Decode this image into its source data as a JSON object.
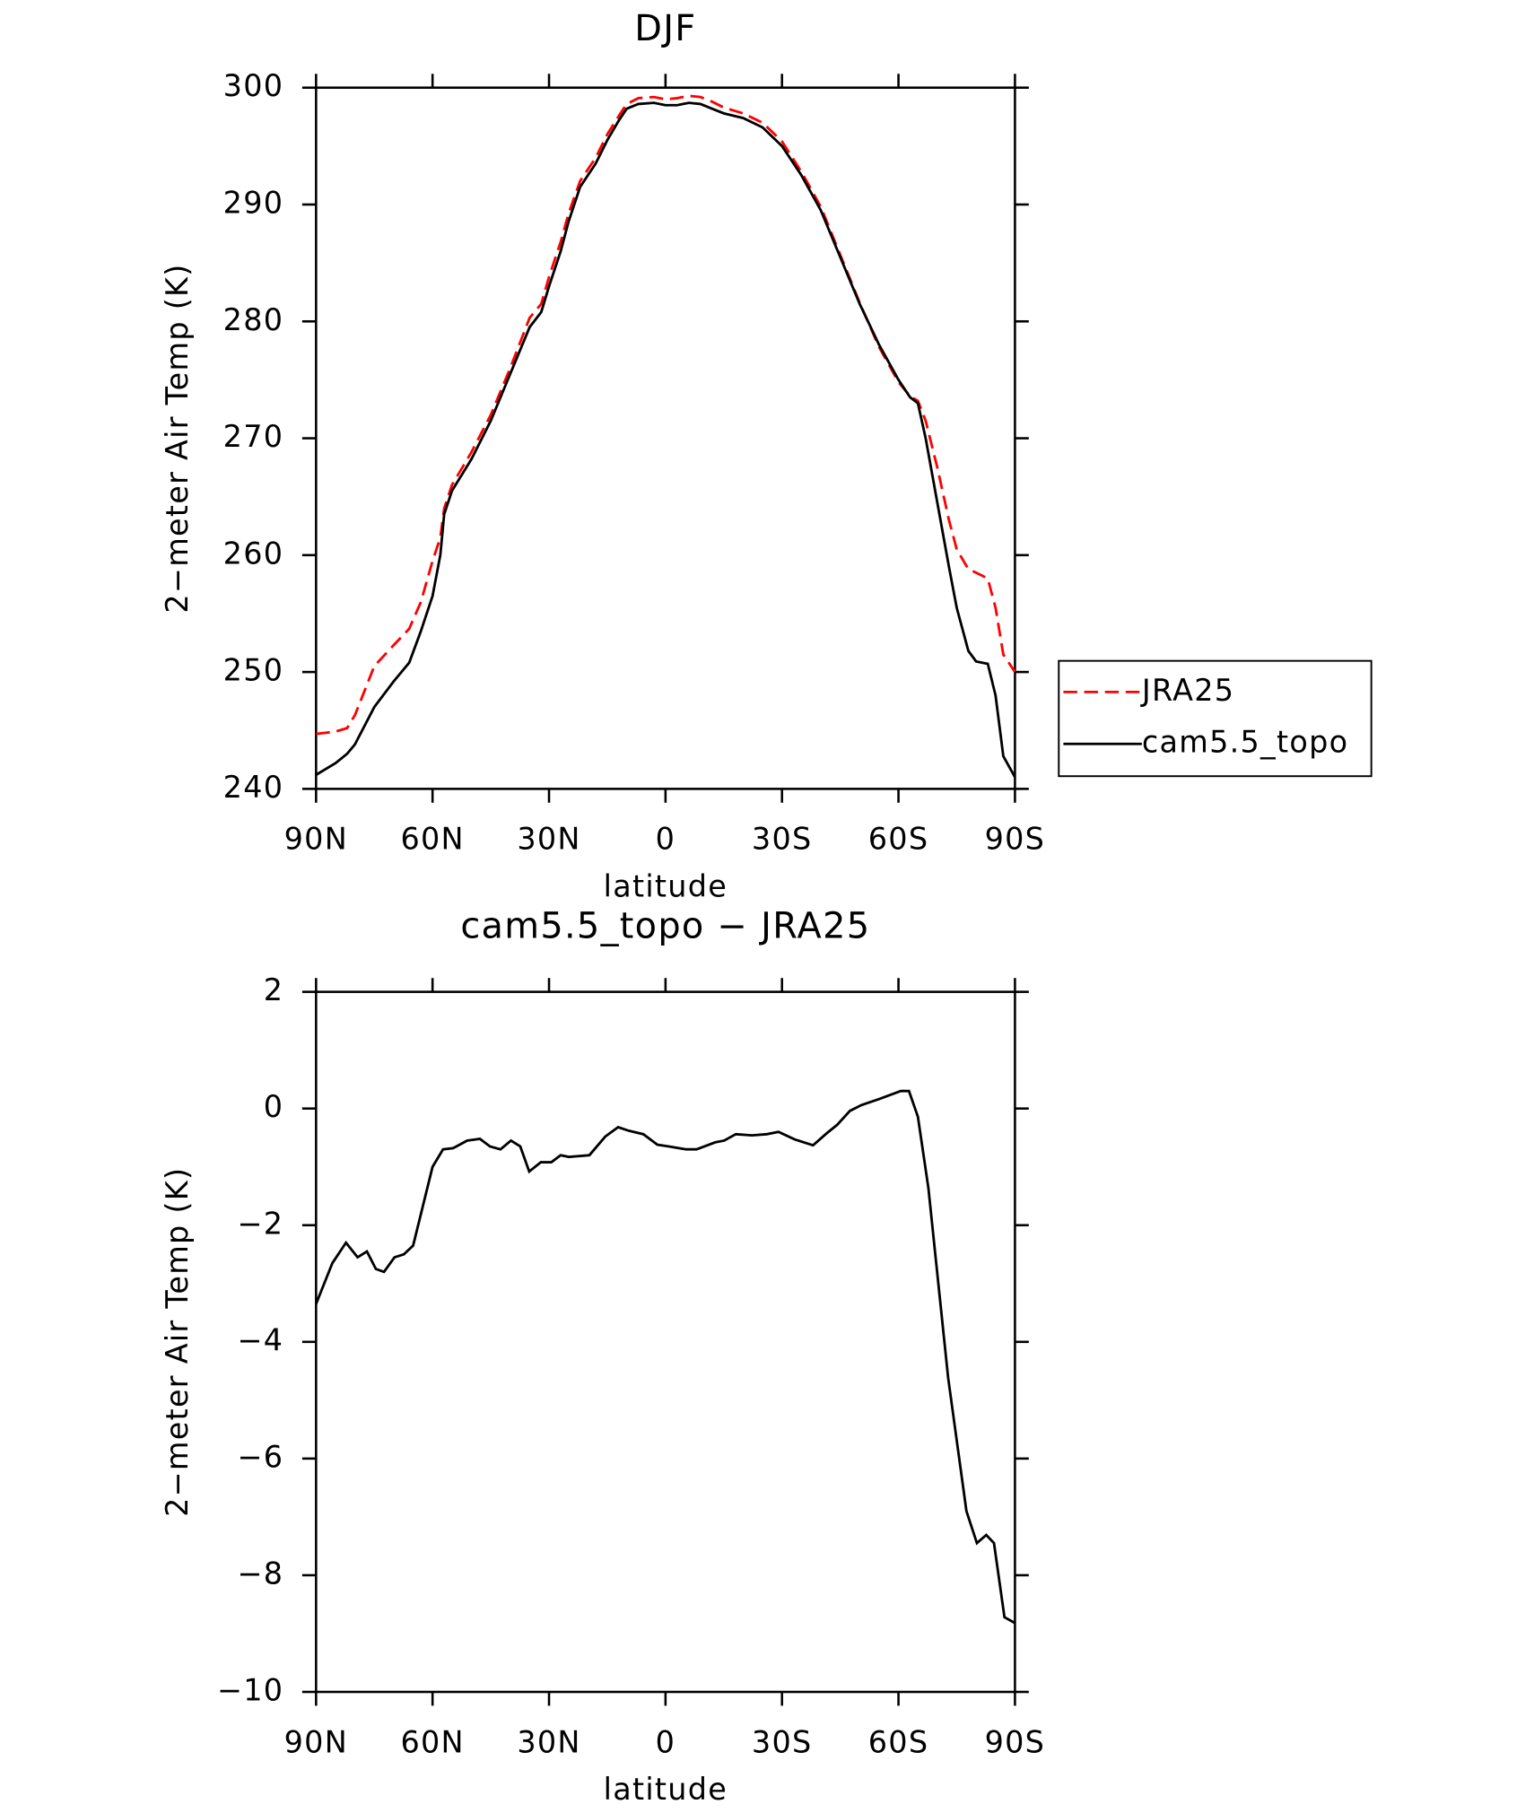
{
  "chart_data": [
    {
      "type": "line",
      "title": "DJF",
      "xlabel": "latitude",
      "ylabel": "2−meter Air Temp (K)",
      "x": [
        90,
        85,
        82,
        80,
        75,
        70,
        66,
        63,
        60,
        58,
        57,
        55,
        50,
        45,
        40,
        35,
        32,
        30,
        27,
        25,
        22,
        18,
        15,
        12,
        10,
        7,
        3,
        0,
        -3,
        -6,
        -9,
        -12,
        -15,
        -20,
        -25,
        -30,
        -35,
        -40,
        -45,
        -50,
        -55,
        -60,
        -63,
        -65,
        -67,
        -70,
        -73,
        -75,
        -78,
        -80,
        -83,
        -85,
        -87,
        -90
      ],
      "series": [
        {
          "name": "JRA25",
          "color": "#ff0000",
          "dash": true,
          "values": [
            244.7,
            244.9,
            245.2,
            246.3,
            250.5,
            252.3,
            253.7,
            256,
            259.5,
            261.5,
            264,
            266,
            268.8,
            272,
            276,
            280.3,
            281.5,
            283.8,
            286.8,
            289.2,
            292,
            294,
            296,
            297.6,
            298.6,
            299.1,
            299.2,
            299.0,
            299.1,
            299.3,
            299.2,
            298.8,
            298.3,
            297.8,
            297.0,
            295.4,
            292.8,
            289.8,
            285.7,
            281.6,
            277.8,
            274.8,
            273.6,
            273.2,
            271.5,
            267.5,
            263,
            260.5,
            258.8,
            258.5,
            258.0,
            255.5,
            251.5,
            250.0
          ]
        },
        {
          "name": "cam5.5_topo",
          "color": "#000000",
          "dash": false,
          "values": [
            241.2,
            242.2,
            243.0,
            243.8,
            247,
            249.2,
            250.8,
            253.5,
            256.5,
            260,
            263.5,
            265.5,
            268.2,
            271.5,
            275.5,
            279.5,
            280.8,
            283,
            286,
            288.5,
            291.5,
            293.5,
            295.5,
            297.2,
            298.2,
            298.6,
            298.7,
            298.5,
            298.5,
            298.7,
            298.6,
            298.2,
            297.8,
            297.4,
            296.6,
            295.0,
            292.5,
            289.5,
            285.5,
            281.5,
            278.0,
            275.0,
            273.5,
            273.0,
            270.0,
            264.5,
            259,
            255.5,
            251.8,
            250.9,
            250.7,
            248,
            242.8,
            241.0
          ]
        }
      ],
      "xlim": [
        90,
        -90
      ],
      "xticks": [
        {
          "value": 90,
          "label": "90N"
        },
        {
          "value": 60,
          "label": "60N"
        },
        {
          "value": 30,
          "label": "30N"
        },
        0,
        {
          "value": -30,
          "label": "30S"
        },
        {
          "value": -60,
          "label": "60S"
        },
        {
          "value": -90,
          "label": "90S"
        }
      ],
      "ylim": [
        240,
        300
      ],
      "yticks": [
        240,
        250,
        260,
        270,
        280,
        290,
        300
      ],
      "legend": "right"
    },
    {
      "type": "line",
      "title": "cam5.5_topo − JRA25",
      "xlabel": "latitude",
      "ylabel": "2−meter Air Temp (K)",
      "x": [
        90,
        85.8,
        82.3,
        79.3,
        76.9,
        74.6,
        72.5,
        69.8,
        67.4,
        65,
        60,
        57.3,
        54.7,
        51.1,
        47.8,
        45.2,
        42.5,
        39.8,
        37.4,
        35.1,
        32.1,
        29.4,
        27,
        24.9,
        19.6,
        15.5,
        12.2,
        9.5,
        5.7,
        2.1,
        -0.9,
        -5.3,
        -8,
        -12.8,
        -15.1,
        -18.1,
        -22.3,
        -26.1,
        -29.1,
        -33.3,
        -38,
        -41.6,
        -44.2,
        -47.5,
        -50.5,
        -54.9,
        -60.6,
        -62.7,
        -65,
        -67.7,
        -72.8,
        -77.5,
        -80.2,
        -82.6,
        -84.6,
        -87.3,
        -90
      ],
      "values": [
        -3.35,
        -2.65,
        -2.3,
        -2.55,
        -2.45,
        -2.75,
        -2.8,
        -2.55,
        -2.5,
        -2.35,
        -1.0,
        -0.7,
        -0.68,
        -0.55,
        -0.52,
        -0.65,
        -0.7,
        -0.55,
        -0.65,
        -1.08,
        -0.92,
        -0.92,
        -0.8,
        -0.83,
        -0.8,
        -0.48,
        -0.32,
        -0.38,
        -0.44,
        -0.62,
        -0.65,
        -0.7,
        -0.7,
        -0.58,
        -0.55,
        -0.44,
        -0.46,
        -0.44,
        -0.4,
        -0.53,
        -0.63,
        -0.42,
        -0.28,
        -0.04,
        0.06,
        0.16,
        0.3,
        0.3,
        -0.14,
        -1.36,
        -4.62,
        -6.9,
        -7.45,
        -7.31,
        -7.45,
        -8.72,
        -8.82
      ],
      "color": "#000000",
      "xlim": [
        90,
        -90
      ],
      "xticks": [
        {
          "value": 90,
          "label": "90N"
        },
        {
          "value": 60,
          "label": "60N"
        },
        {
          "value": 30,
          "label": "30N"
        },
        0,
        {
          "value": -30,
          "label": "30S"
        },
        {
          "value": -60,
          "label": "60S"
        },
        {
          "value": -90,
          "label": "90S"
        }
      ],
      "ylim": [
        -10,
        2
      ],
      "yticks": [
        {
          "value": -10,
          "label": "−10"
        },
        {
          "value": -8,
          "label": "−8"
        },
        {
          "value": -6,
          "label": "−6"
        },
        {
          "value": -4,
          "label": "−4"
        },
        {
          "value": -2,
          "label": "−2"
        },
        0,
        2
      ]
    }
  ]
}
